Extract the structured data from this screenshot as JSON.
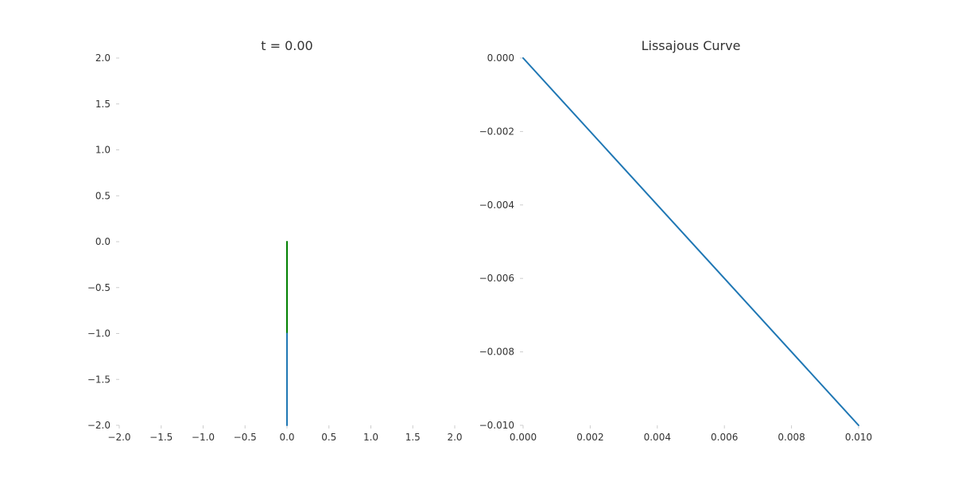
{
  "chart_data": [
    {
      "type": "line",
      "title": "t = 0.00",
      "xlabel": "",
      "ylabel": "",
      "xlim": [
        -2.0,
        2.0
      ],
      "ylim": [
        -2.0,
        2.0
      ],
      "x_ticks": [
        "−2.0",
        "−1.5",
        "−1.0",
        "−0.5",
        "0.0",
        "0.5",
        "1.0",
        "1.5",
        "2.0"
      ],
      "x_tick_values": [
        -2.0,
        -1.5,
        -1.0,
        -0.5,
        0.0,
        0.5,
        1.0,
        1.5,
        2.0
      ],
      "y_ticks": [
        "2.0",
        "1.5",
        "1.0",
        "0.5",
        "0.0",
        "−0.5",
        "−1.0",
        "−1.5",
        "−2.0"
      ],
      "y_tick_values": [
        2.0,
        1.5,
        1.0,
        0.5,
        0.0,
        -0.5,
        -1.0,
        -1.5,
        -2.0
      ],
      "grid": false,
      "series": [
        {
          "color": "#008000",
          "x": [
            0.0,
            0.0
          ],
          "y": [
            0.0,
            -1.0
          ]
        },
        {
          "color": "#1f77b4",
          "x": [
            0.0,
            0.0
          ],
          "y": [
            -1.0,
            -2.0
          ]
        }
      ]
    },
    {
      "type": "line",
      "title": "Lissajous Curve",
      "xlabel": "",
      "ylabel": "",
      "xlim": [
        0.0,
        0.01
      ],
      "ylim": [
        -0.01,
        0.0
      ],
      "x_ticks": [
        "0.000",
        "0.002",
        "0.004",
        "0.006",
        "0.008",
        "0.010"
      ],
      "x_tick_values": [
        0.0,
        0.002,
        0.004,
        0.006,
        0.008,
        0.01
      ],
      "y_ticks": [
        "0.000",
        "−0.002",
        "−0.004",
        "−0.006",
        "−0.008",
        "−0.010"
      ],
      "y_tick_values": [
        0.0,
        -0.002,
        -0.004,
        -0.006,
        -0.008,
        -0.01
      ],
      "grid": false,
      "series": [
        {
          "color": "#1f77b4",
          "x": [
            0.0,
            0.01
          ],
          "y": [
            0.0,
            -0.01
          ]
        }
      ]
    }
  ]
}
